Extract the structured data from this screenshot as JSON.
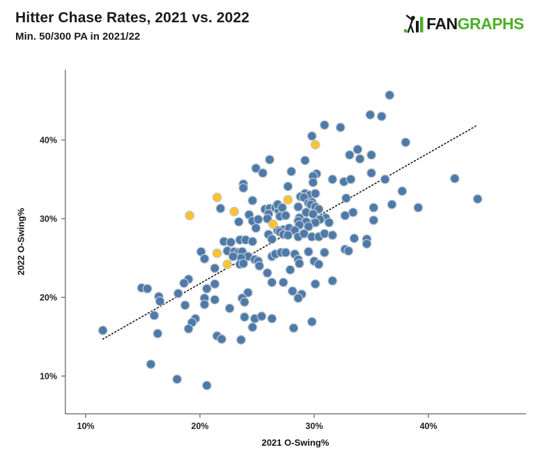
{
  "header": {
    "title": "Hitter Chase Rates, 2021 vs. 2022",
    "subtitle": "Min. 50/300 PA in 2021/22"
  },
  "logo": {
    "fan": "FAN",
    "graphs": "GRAPHS",
    "green": "#4cae28",
    "black": "#181818"
  },
  "chart_data": {
    "type": "scatter",
    "title": "Hitter Chase Rates, 2021 vs. 2022",
    "subtitle": "Min. 50/300 PA in 2021/22",
    "xlabel": "2021 O-Swing%",
    "ylabel": "2022 O-Swing%",
    "xlim": [
      8.17,
      48.53
    ],
    "ylim": [
      5.13,
      48.94
    ],
    "grid": false,
    "legend": "none",
    "x_ticks": [
      {
        "v": 10,
        "label": "10%"
      },
      {
        "v": 20,
        "label": "20%"
      },
      {
        "v": 30,
        "label": "30%"
      },
      {
        "v": 40,
        "label": "40%"
      }
    ],
    "y_ticks": [
      {
        "v": 10,
        "label": "10%"
      },
      {
        "v": 20,
        "label": "20%"
      },
      {
        "v": 30,
        "label": "30%"
      },
      {
        "v": 40,
        "label": "40%"
      }
    ],
    "axis_color": "#7a7a7a",
    "trend": {
      "type": "dotted",
      "color": "#1b1b1b",
      "x1": 11.5,
      "y1": 14.7,
      "x2": 44.3,
      "y2": 41.9
    },
    "point_radius": 6.3,
    "point_stroke": "#c2c9d2",
    "series": [
      {
        "name": "hitters",
        "color": "#4d7aa9",
        "points": [
          [
            34.9,
            43.2
          ],
          [
            30.9,
            41.9
          ],
          [
            32.3,
            41.6
          ],
          [
            29.8,
            40.5
          ],
          [
            33.8,
            38.8
          ],
          [
            33.1,
            38.1
          ],
          [
            34.0,
            37.6
          ],
          [
            26.1,
            37.5
          ],
          [
            29.2,
            37.4
          ],
          [
            24.9,
            36.4
          ],
          [
            25.5,
            35.8
          ],
          [
            28.0,
            36.0
          ],
          [
            30.2,
            35.7
          ],
          [
            29.9,
            35.4
          ],
          [
            31.6,
            35.0
          ],
          [
            32.6,
            34.7
          ],
          [
            33.2,
            35.0
          ],
          [
            23.8,
            34.4
          ],
          [
            29.9,
            34.6
          ],
          [
            36.6,
            45.7
          ],
          [
            35.9,
            43.0
          ],
          [
            38.0,
            39.7
          ],
          [
            35.0,
            38.1
          ],
          [
            35.0,
            35.8
          ],
          [
            36.2,
            35.0
          ],
          [
            42.3,
            35.1
          ],
          [
            37.7,
            33.5
          ],
          [
            36.8,
            31.8
          ],
          [
            35.2,
            31.4
          ],
          [
            39.1,
            31.4
          ],
          [
            35.2,
            29.8
          ],
          [
            44.3,
            32.5
          ],
          [
            32.8,
            32.6
          ],
          [
            21.8,
            31.3
          ],
          [
            20.1,
            25.8
          ],
          [
            20.4,
            24.9
          ],
          [
            21.3,
            23.7
          ],
          [
            19.0,
            22.3
          ],
          [
            18.6,
            21.8
          ],
          [
            14.9,
            21.2
          ],
          [
            15.4,
            21.1
          ],
          [
            16.4,
            20.1
          ],
          [
            18.1,
            20.5
          ],
          [
            21.3,
            21.7
          ],
          [
            20.6,
            21.1
          ],
          [
            20.4,
            19.9
          ],
          [
            21.3,
            19.7
          ],
          [
            23.8,
            33.9
          ],
          [
            27.7,
            34.1
          ],
          [
            29.2,
            33.2
          ],
          [
            29.6,
            33.0
          ],
          [
            30.1,
            33.2
          ],
          [
            24.6,
            32.3
          ],
          [
            28.8,
            32.8
          ],
          [
            29.1,
            32.7
          ],
          [
            29.5,
            32.0
          ],
          [
            29.8,
            32.1
          ],
          [
            24.3,
            30.5
          ],
          [
            25.7,
            31.2
          ],
          [
            26.1,
            31.3
          ],
          [
            26.6,
            31.4
          ],
          [
            26.9,
            31.0
          ],
          [
            26.0,
            30.6
          ],
          [
            26.8,
            31.8
          ],
          [
            27.2,
            31.4
          ],
          [
            28.6,
            31.5
          ],
          [
            29.7,
            31.8
          ],
          [
            30.1,
            31.5
          ],
          [
            30.4,
            31.2
          ],
          [
            29.3,
            30.8
          ],
          [
            29.9,
            30.6
          ],
          [
            23.4,
            29.6
          ],
          [
            24.6,
            29.7
          ],
          [
            25.1,
            29.9
          ],
          [
            25.9,
            30.0
          ],
          [
            27.0,
            30.3
          ],
          [
            27.5,
            30.4
          ],
          [
            28.7,
            30.1
          ],
          [
            31.0,
            30.1
          ],
          [
            30.5,
            29.9
          ],
          [
            28.6,
            29.7
          ],
          [
            29.3,
            29.6
          ],
          [
            30.1,
            29.5
          ],
          [
            28.7,
            29.2
          ],
          [
            29.5,
            29.0
          ],
          [
            31.3,
            29.5
          ],
          [
            33.4,
            30.8
          ],
          [
            32.7,
            30.4
          ],
          [
            24.9,
            28.8
          ],
          [
            26.8,
            28.5
          ],
          [
            27.3,
            28.6
          ],
          [
            27.8,
            28.8
          ],
          [
            28.3,
            28.5
          ],
          [
            27.0,
            28.3
          ],
          [
            27.3,
            28.0
          ],
          [
            27.7,
            27.9
          ],
          [
            26.0,
            28.0
          ],
          [
            26.3,
            27.4
          ],
          [
            28.6,
            27.7
          ],
          [
            29.1,
            28.1
          ],
          [
            29.8,
            27.7
          ],
          [
            30.4,
            27.7
          ],
          [
            30.9,
            28.1
          ],
          [
            31.6,
            27.9
          ],
          [
            33.5,
            27.5
          ],
          [
            34.6,
            27.4
          ],
          [
            34.6,
            26.8
          ],
          [
            22.1,
            27.1
          ],
          [
            22.7,
            27.0
          ],
          [
            23.5,
            27.3
          ],
          [
            24.0,
            27.3
          ],
          [
            24.6,
            27.1
          ],
          [
            22.4,
            25.9
          ],
          [
            23.0,
            25.8
          ],
          [
            23.4,
            25.7
          ],
          [
            23.7,
            25.8
          ],
          [
            24.2,
            25.2
          ],
          [
            23.6,
            25.0
          ],
          [
            22.9,
            25.2
          ],
          [
            23.5,
            24.2
          ],
          [
            23.8,
            24.3
          ],
          [
            24.8,
            24.8
          ],
          [
            26.3,
            25.2
          ],
          [
            26.6,
            25.5
          ],
          [
            27.1,
            25.7
          ],
          [
            27.5,
            25.7
          ],
          [
            28.3,
            25.5
          ],
          [
            29.5,
            25.8
          ],
          [
            30.9,
            25.7
          ],
          [
            32.7,
            26.1
          ],
          [
            33.0,
            25.9
          ],
          [
            25.1,
            24.6
          ],
          [
            25.2,
            24.0
          ],
          [
            25.9,
            23.1
          ],
          [
            28.6,
            24.8
          ],
          [
            28.7,
            24.3
          ],
          [
            30.0,
            24.6
          ],
          [
            30.4,
            24.2
          ],
          [
            27.9,
            23.5
          ],
          [
            28.1,
            20.8
          ],
          [
            26.3,
            21.9
          ],
          [
            27.3,
            21.9
          ],
          [
            30.1,
            21.7
          ],
          [
            31.6,
            22.1
          ],
          [
            28.9,
            20.4
          ],
          [
            24.2,
            20.6
          ],
          [
            23.7,
            19.9
          ],
          [
            28.6,
            19.9
          ],
          [
            11.5,
            15.8
          ],
          [
            16.0,
            17.7
          ],
          [
            16.3,
            15.4
          ],
          [
            16.5,
            19.5
          ],
          [
            18.7,
            19.0
          ],
          [
            19.6,
            17.3
          ],
          [
            19.3,
            16.8
          ],
          [
            19.0,
            16.0
          ],
          [
            20.4,
            19.1
          ],
          [
            21.5,
            15.1
          ],
          [
            15.7,
            11.5
          ],
          [
            18.0,
            9.6
          ],
          [
            20.6,
            8.8
          ],
          [
            22.6,
            18.6
          ],
          [
            23.9,
            19.4
          ],
          [
            23.9,
            17.5
          ],
          [
            24.8,
            17.3
          ],
          [
            25.4,
            17.6
          ],
          [
            24.6,
            16.2
          ],
          [
            26.3,
            17.3
          ],
          [
            28.2,
            16.1
          ],
          [
            29.8,
            16.9
          ],
          [
            21.9,
            14.7
          ],
          [
            23.6,
            14.6
          ]
        ]
      },
      {
        "name": "highlighted",
        "color": "#fdc32a",
        "points": [
          [
            30.1,
            39.4
          ],
          [
            21.5,
            32.7
          ],
          [
            19.1,
            30.4
          ],
          [
            27.7,
            32.4
          ],
          [
            23.0,
            30.9
          ],
          [
            26.4,
            29.3
          ],
          [
            21.5,
            25.6
          ],
          [
            22.4,
            24.2
          ]
        ]
      }
    ]
  }
}
